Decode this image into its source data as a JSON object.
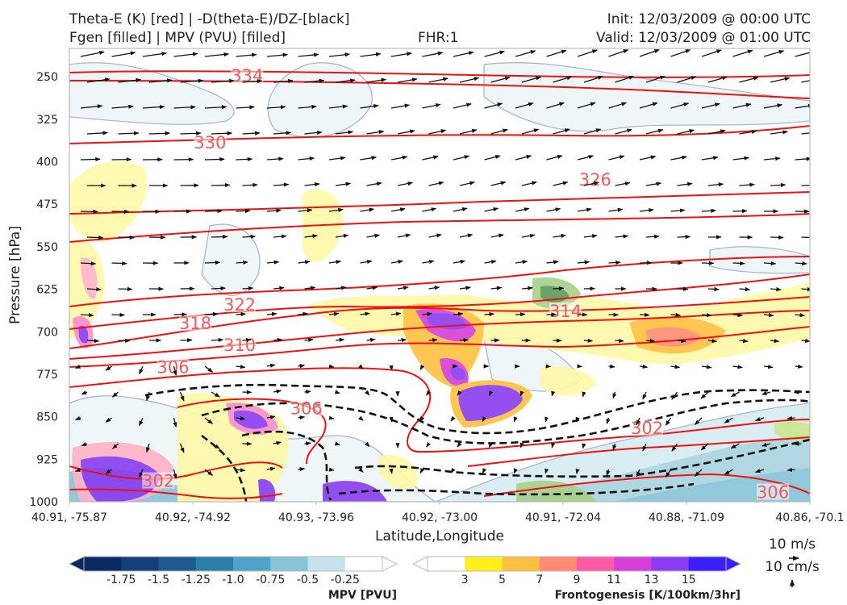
{
  "header": {
    "line1_left": "Theta-E (K) [red] | -D(theta-E)/DZ-[black]",
    "line2_left": "Fgen [filled] | MPV (PVU) [filled]",
    "fhr": "FHR:1",
    "init": "Init: 12/03/2009 @ 00:00 UTC",
    "valid": "Valid: 12/03/2009 @ 01:00 UTC"
  },
  "chart_data": {
    "type": "cross-section",
    "xlabel": "Latitude,Longitude",
    "ylabel": "Pressure [hPa]",
    "x_ticks": [
      "40.91, -75.87",
      "40.92, -74.92",
      "40.93, -73.96",
      "40.92, -73.00",
      "40.91, -72.04",
      "40.88, -71.09",
      "40.86, -70.1"
    ],
    "y_ticks": [
      "250",
      "325",
      "400",
      "475",
      "550",
      "625",
      "700",
      "775",
      "850",
      "925",
      "1000"
    ],
    "ylim": [
      200,
      1000
    ],
    "theta_e_labels": [
      {
        "text": "334",
        "x_frac": 0.24,
        "p": 253
      },
      {
        "text": "330",
        "x_frac": 0.19,
        "p": 371
      },
      {
        "text": "326",
        "x_frac": 0.71,
        "p": 436
      },
      {
        "text": "322",
        "x_frac": 0.23,
        "p": 657
      },
      {
        "text": "318",
        "x_frac": 0.17,
        "p": 690
      },
      {
        "text": "314",
        "x_frac": 0.67,
        "p": 668
      },
      {
        "text": "310",
        "x_frac": 0.23,
        "p": 728
      },
      {
        "text": "306",
        "x_frac": 0.14,
        "p": 767
      },
      {
        "text": "306",
        "x_frac": 0.32,
        "p": 840
      },
      {
        "text": "302",
        "x_frac": 0.78,
        "p": 875
      },
      {
        "text": "302",
        "x_frac": 0.12,
        "p": 968
      },
      {
        "text": "306",
        "x_frac": 0.95,
        "p": 988
      }
    ],
    "mpv_colorbar": {
      "title": "MPV [PVU]",
      "ticks": [
        "-1.75",
        "-1.5",
        "-1.25",
        "-1.0",
        "-0.75",
        "-0.5",
        "-0.25"
      ],
      "colors": [
        "#0b2a63",
        "#143f78",
        "#1d5a8e",
        "#2a7ea9",
        "#4ea3c6",
        "#87c3d9",
        "#c5e3ec",
        "#ffffff"
      ]
    },
    "fgen_colorbar": {
      "title": "Frontogenesis [K/100km/3hr]",
      "ticks": [
        "3",
        "5",
        "7",
        "9",
        "11",
        "13",
        "15"
      ],
      "colors": [
        "#ffffff",
        "#fff01a",
        "#ffc040",
        "#ff8c72",
        "#ff5aa8",
        "#d63ed8",
        "#8a3cf0",
        "#3a20ff"
      ]
    },
    "vector_key": {
      "horizontal": "10 m/s",
      "vertical": "10 cm/s"
    }
  }
}
